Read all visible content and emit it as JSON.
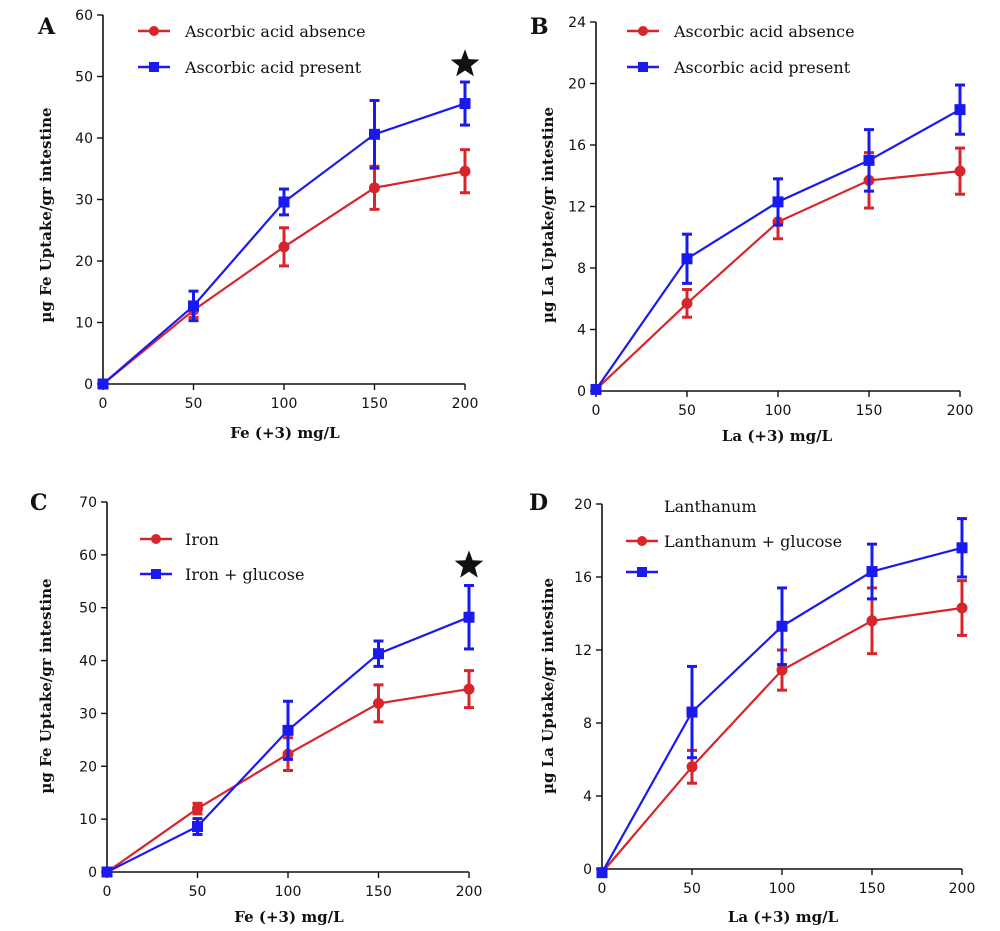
{
  "colors": {
    "red": "#d7262b",
    "blue": "#1a1aee",
    "axis": "#111111",
    "star": "#111111"
  },
  "chart_data": [
    {
      "panel": "A",
      "type": "line",
      "xlabel": "Fe (+3) mg/L",
      "ylabel": "µg Fe Uptake/gr intestine",
      "xlim": [
        0,
        200
      ],
      "ylim": [
        0,
        60
      ],
      "xticks": [
        0,
        50,
        100,
        150,
        200
      ],
      "yticks": [
        0,
        10,
        20,
        30,
        40,
        50,
        60
      ],
      "grid": false,
      "legend_placement": "top-left",
      "significance_marker": {
        "x": 200,
        "y": 52,
        "symbol": "star"
      },
      "x": [
        0,
        50,
        100,
        150,
        200
      ],
      "series": [
        {
          "name": "Ascorbic acid absence",
          "color": "red",
          "marker": "circle",
          "values": [
            0,
            12,
            22.3,
            31.9,
            34.6
          ],
          "errors": [
            0,
            1.2,
            3.1,
            3.5,
            3.5
          ]
        },
        {
          "name": "Ascorbic acid present",
          "color": "blue",
          "marker": "square",
          "values": [
            0,
            12.7,
            29.6,
            40.6,
            45.6
          ],
          "errors": [
            0,
            2.4,
            2.1,
            5.5,
            3.5
          ]
        }
      ]
    },
    {
      "panel": "B",
      "type": "line",
      "xlabel": "La (+3) mg/L",
      "ylabel": "µg La Uptake/gr intestine",
      "xlim": [
        0,
        200
      ],
      "ylim": [
        0,
        24
      ],
      "xticks": [
        0,
        50,
        100,
        150,
        200
      ],
      "yticks": [
        0,
        4,
        8,
        12,
        16,
        20,
        24
      ],
      "grid": false,
      "legend_placement": "top-left",
      "x": [
        0,
        50,
        100,
        150,
        200
      ],
      "series": [
        {
          "name": "Ascorbic acid absence",
          "color": "red",
          "marker": "circle",
          "values": [
            0.1,
            5.7,
            11,
            13.7,
            14.3
          ],
          "errors": [
            0,
            0.9,
            1.1,
            1.8,
            1.5
          ]
        },
        {
          "name": "Ascorbic acid present",
          "color": "blue",
          "marker": "square",
          "values": [
            0.1,
            8.6,
            12.3,
            15,
            18.3
          ],
          "errors": [
            0,
            1.6,
            1.5,
            2,
            1.6
          ]
        }
      ]
    },
    {
      "panel": "C",
      "type": "line",
      "xlabel": "Fe (+3) mg/L",
      "ylabel": "µg Fe Uptake/gr intestine",
      "xlim": [
        0,
        200
      ],
      "ylim": [
        0,
        70
      ],
      "xticks": [
        0,
        50,
        100,
        150,
        200
      ],
      "yticks": [
        0,
        10,
        20,
        30,
        40,
        50,
        60,
        70
      ],
      "grid": false,
      "legend_placement": "top-left",
      "significance_marker": {
        "x": 200,
        "y": 58,
        "symbol": "star"
      },
      "x": [
        0,
        50,
        100,
        150,
        200
      ],
      "series": [
        {
          "name": "Iron",
          "color": "red",
          "marker": "circle",
          "values": [
            0,
            12,
            22.3,
            31.9,
            34.6
          ],
          "errors": [
            0,
            1,
            3.1,
            3.5,
            3.5
          ]
        },
        {
          "name": "Iron + glucose",
          "color": "blue",
          "marker": "square",
          "values": [
            0,
            8.6,
            26.8,
            41.3,
            48.2
          ],
          "errors": [
            0,
            1.5,
            5.5,
            2.4,
            6
          ]
        }
      ]
    },
    {
      "panel": "D",
      "type": "line",
      "xlabel": "La (+3) mg/L",
      "ylabel": "µg La Uptake/gr intestine",
      "xlim": [
        0,
        200
      ],
      "ylim": [
        0,
        20
      ],
      "xticks": [
        0,
        50,
        100,
        150,
        200
      ],
      "yticks": [
        0,
        4,
        8,
        12,
        16,
        20
      ],
      "grid": false,
      "legend_placement": "top-left",
      "legend_heading": "Lanthanum",
      "x": [
        0,
        50,
        100,
        150,
        200
      ],
      "series": [
        {
          "name": "Lanthanum + glucose",
          "color": "red",
          "marker": "circle",
          "values": [
            -0.2,
            5.6,
            10.9,
            13.6,
            14.3
          ],
          "errors": [
            0,
            0.9,
            1.1,
            1.8,
            1.5
          ]
        },
        {
          "name": "",
          "color": "blue",
          "marker": "square",
          "values": [
            -0.2,
            8.6,
            13.3,
            16.3,
            17.6
          ],
          "errors": [
            0,
            2.5,
            2.1,
            1.5,
            1.6
          ]
        }
      ]
    }
  ]
}
